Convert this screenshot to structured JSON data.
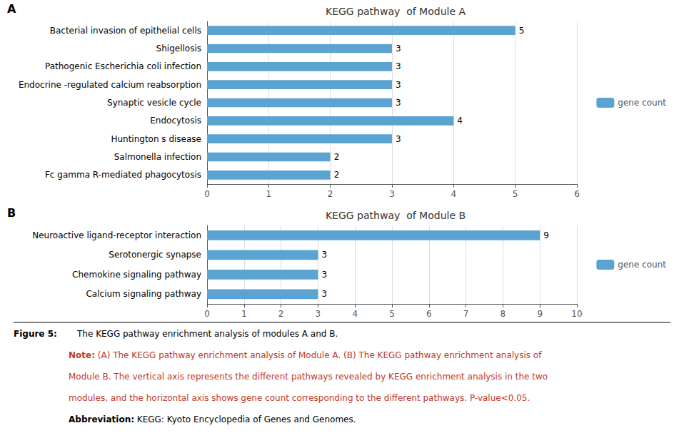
{
  "chart_data": [
    {
      "type": "bar",
      "orientation": "horizontal",
      "title": "KEGG pathway  of Module A",
      "annotations": [
        "A"
      ],
      "categories": [
        "Fc gamma R-mediated phagocytosis",
        "Salmonella infection",
        "Huntington s disease",
        "Endocytosis",
        "Synaptic vesicle cycle",
        "Endocrine -regulated calcium reabsorption",
        "Pathogenic Escherichia coli infection",
        "Shigellosis",
        "Bacterial invasion of epithelial cells"
      ],
      "series": [
        {
          "name": "gene count",
          "color": "#5BA3D0",
          "values": [
            2,
            2,
            3,
            4,
            3,
            3,
            3,
            3,
            5
          ]
        }
      ],
      "xlim": [
        0,
        6
      ],
      "xticks": [
        0,
        1,
        2,
        3,
        4,
        5,
        6
      ],
      "grid": true,
      "legend": "right",
      "data_labels": true
    },
    {
      "type": "bar",
      "orientation": "horizontal",
      "title": "KEGG pathway  of Module B",
      "annotations": [
        "B"
      ],
      "categories": [
        "Calcium signaling pathway",
        "Chemokine signaling pathway",
        "Serotonergic synapse",
        "Neuroactive ligand-receptor interaction"
      ],
      "series": [
        {
          "name": "gene count",
          "color": "#5BA3D0",
          "values": [
            3,
            3,
            3,
            9
          ]
        }
      ],
      "xlim": [
        0,
        10
      ],
      "xticks": [
        0,
        1,
        2,
        3,
        4,
        5,
        6,
        7,
        8,
        9,
        10
      ],
      "grid": true,
      "legend": "right",
      "data_labels": true
    }
  ],
  "caption": [
    {
      "lead": "Figure 5:",
      "text": " The KEGG pathway enrichment analysis of modules A and B."
    },
    {
      "bold": "Note:",
      "text": " (A) The KEGG pathway enrichment analysis of Module A. (B) The KEGG pathway enrichment analysis of",
      "color": "#C0392B"
    },
    {
      "text": "Module B. The vertical axis represents the different pathways revealed by KEGG enrichment analysis in the two",
      "color": "#C0392B"
    },
    {
      "text": "modules, and the horizontal axis shows gene count corresponding to the different pathways. P-value<0.05.",
      "color": "#C0392B"
    },
    {
      "bold": "Abbreviation:",
      "text": " KEGG: Kyoto Encyclopedia of Genes and Genomes."
    }
  ]
}
